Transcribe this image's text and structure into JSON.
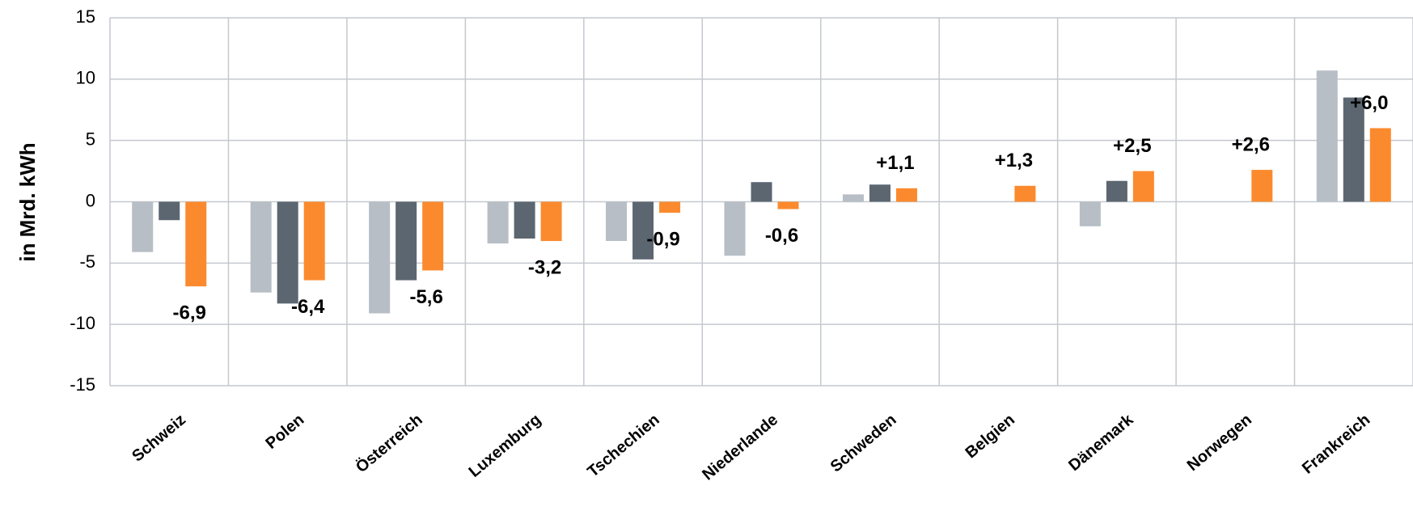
{
  "chart_data": {
    "type": "bar",
    "y_label": "in Mrd. kWh",
    "categories": [
      "Schweiz",
      "Polen",
      "Österreich",
      "Luxemburg",
      "Tschechien",
      "Niederlande",
      "Schweden",
      "Belgien",
      "Dänemark",
      "Norwegen",
      "Frankreich"
    ],
    "series": [
      {
        "color": "#b7bec5",
        "values": [
          -4.1,
          -7.4,
          -9.1,
          -3.4,
          -3.2,
          -4.4,
          0.6,
          null,
          -2.0,
          null,
          10.7
        ]
      },
      {
        "color": "#5b6670",
        "values": [
          -1.5,
          -8.3,
          -6.4,
          -3.0,
          -4.7,
          1.6,
          1.4,
          null,
          1.7,
          null,
          8.5
        ]
      },
      {
        "color": "#fb8a2e",
        "values": [
          -6.9,
          -6.4,
          -5.6,
          -3.2,
          -0.9,
          -0.6,
          1.1,
          1.3,
          2.5,
          2.6,
          6.0
        ],
        "value_labels": [
          "-6,9",
          "-6,4",
          "-5,6",
          "-3,2",
          "-0,9",
          "-0,6",
          "+1,1",
          "+1,3",
          "+2,5",
          "+2,6",
          "+6,0"
        ]
      }
    ],
    "ylim": [
      -15,
      15
    ],
    "yticks": [
      15,
      10,
      5,
      0,
      -5,
      -10,
      -15
    ],
    "grid": true
  }
}
